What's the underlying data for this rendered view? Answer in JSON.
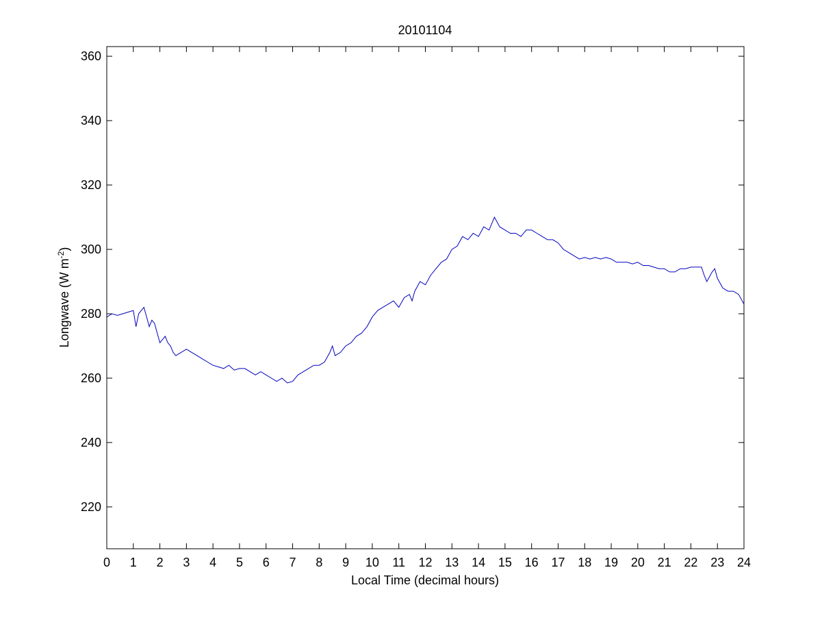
{
  "chart_data": {
    "type": "line",
    "title": "20101104",
    "xlabel": "Local Time (decimal hours)",
    "ylabel_main": "Longwave (W m",
    "ylabel_sup": "-2",
    "ylabel_close": ")",
    "xlim": [
      0,
      24
    ],
    "ylim": [
      207,
      363
    ],
    "xticks": [
      0,
      1,
      2,
      3,
      4,
      5,
      6,
      7,
      8,
      9,
      10,
      11,
      12,
      13,
      14,
      15,
      16,
      17,
      18,
      19,
      20,
      21,
      22,
      23,
      24
    ],
    "yticks": [
      220,
      240,
      260,
      280,
      300,
      320,
      340,
      360
    ],
    "grid": false,
    "line_color": "#0000c0",
    "series": [
      {
        "x": [
          0,
          0.2,
          0.4,
          0.6,
          0.8,
          1.0,
          1.1,
          1.2,
          1.3,
          1.4,
          1.5,
          1.6,
          1.7,
          1.8,
          1.9,
          2.0,
          2.1,
          2.2,
          2.3,
          2.4,
          2.5,
          2.6,
          2.8,
          3.0,
          3.2,
          3.4,
          3.6,
          3.8,
          4.0,
          4.2,
          4.4,
          4.6,
          4.8,
          5.0,
          5.2,
          5.4,
          5.6,
          5.8,
          6.0,
          6.2,
          6.4,
          6.6,
          6.8,
          7.0,
          7.2,
          7.4,
          7.6,
          7.8,
          8.0,
          8.2,
          8.4,
          8.5,
          8.6,
          8.8,
          9.0,
          9.2,
          9.4,
          9.6,
          9.8,
          10.0,
          10.2,
          10.4,
          10.6,
          10.8,
          11.0,
          11.2,
          11.4,
          11.5,
          11.6,
          11.8,
          12.0,
          12.2,
          12.4,
          12.6,
          12.8,
          13.0,
          13.2,
          13.4,
          13.6,
          13.8,
          14.0,
          14.2,
          14.4,
          14.6,
          14.8,
          15.0,
          15.2,
          15.4,
          15.6,
          15.8,
          16.0,
          16.2,
          16.4,
          16.6,
          16.8,
          17.0,
          17.2,
          17.4,
          17.6,
          17.8,
          18.0,
          18.2,
          18.4,
          18.6,
          18.8,
          19.0,
          19.2,
          19.4,
          19.6,
          19.8,
          20.0,
          20.2,
          20.4,
          20.6,
          20.8,
          21.0,
          21.2,
          21.4,
          21.6,
          21.8,
          22.0,
          22.2,
          22.4,
          22.5,
          22.6,
          22.8,
          22.9,
          23.0,
          23.2,
          23.4,
          23.6,
          23.8,
          24.0
        ],
        "y": [
          279,
          280,
          279.5,
          280,
          280.5,
          281,
          276,
          280,
          281,
          282,
          279,
          276,
          278,
          277,
          274,
          271,
          272,
          273,
          271,
          270,
          268,
          267,
          268,
          269,
          268,
          267,
          266,
          265,
          264,
          263.5,
          263,
          264,
          262.5,
          263,
          263,
          262,
          261,
          262,
          261,
          260,
          259,
          260,
          258.5,
          259,
          261,
          262,
          263,
          264,
          264,
          265,
          268,
          270,
          267,
          268,
          270,
          271,
          273,
          274,
          276,
          279,
          281,
          282,
          283,
          284,
          282,
          285,
          286,
          284,
          287,
          290,
          289,
          292,
          294,
          296,
          297,
          300,
          301,
          304,
          303,
          305,
          304,
          307,
          306,
          310,
          307,
          306,
          305,
          305,
          304,
          306,
          306,
          305,
          304,
          303,
          303,
          302,
          300,
          299,
          298,
          297,
          297.5,
          297,
          297.5,
          297,
          297.5,
          297,
          296,
          296,
          296,
          295.5,
          296,
          295,
          295,
          294.5,
          294,
          294,
          293,
          293,
          294,
          294,
          294.5,
          294.5,
          294.5,
          292,
          290,
          293,
          294,
          291,
          288,
          287,
          287,
          286,
          283
        ]
      }
    ]
  }
}
